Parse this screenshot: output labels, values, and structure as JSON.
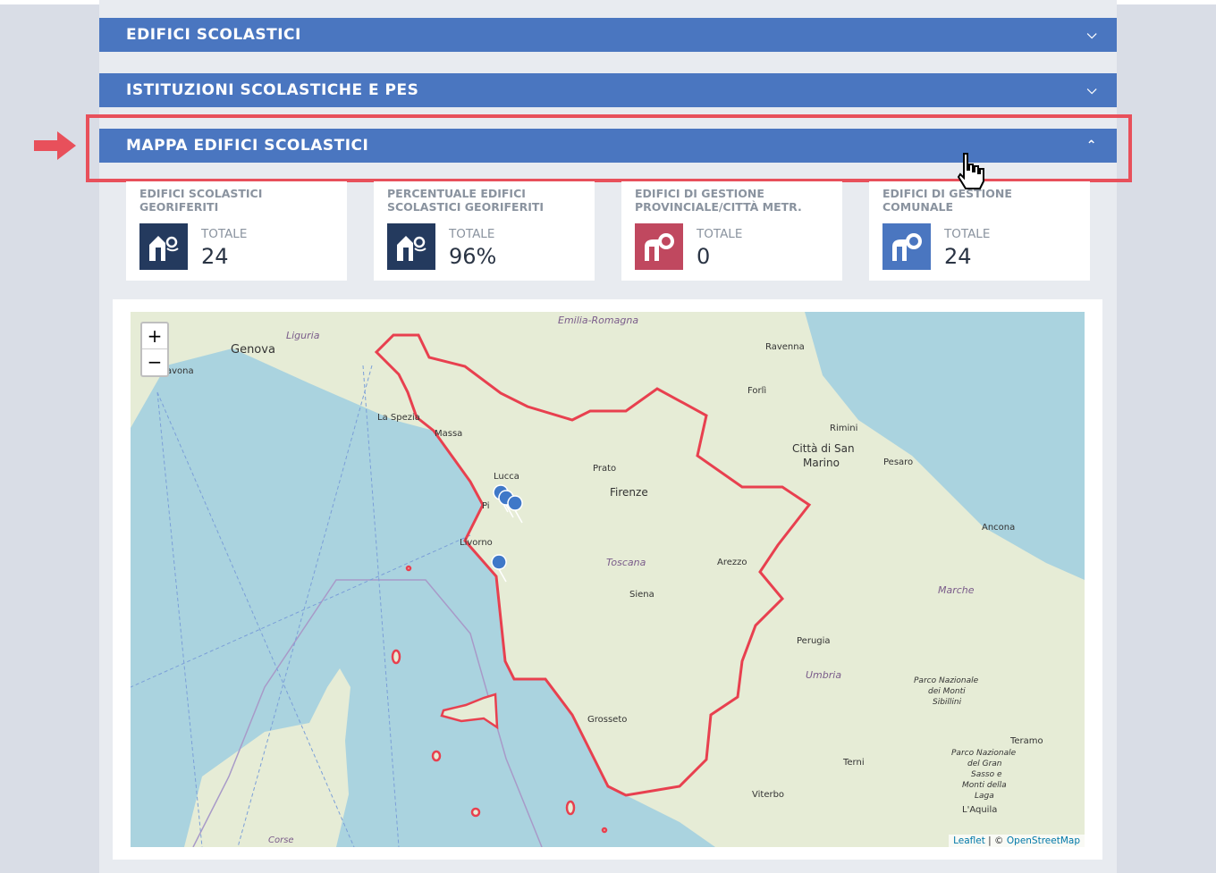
{
  "accordions": [
    {
      "title": "EDIFICI SCOLASTICI",
      "state": "collapsed",
      "chevron": "chevron-down-icon"
    },
    {
      "title": "ISTITUZIONI SCOLASTICHE E PES",
      "state": "collapsed",
      "chevron": "chevron-down-icon"
    },
    {
      "title": "MAPPA EDIFICI SCOLASTICI",
      "state": "expanded",
      "chevron": "chevron-up-icon"
    }
  ],
  "cards": [
    {
      "title": "EDIFICI SCOLASTICI GEORIFERITI",
      "label": "TOTALE",
      "value": "24",
      "icon": "building-pin-icon",
      "color": "#243a5e"
    },
    {
      "title": "PERCENTUALE EDIFICI SCOLASTICI GEORIFERITI",
      "label": "TOTALE",
      "value": "96%",
      "icon": "building-pin-icon",
      "color": "#243a5e"
    },
    {
      "title": "EDIFICI DI GESTIONE PROVINCIALE/CITTÀ METR.",
      "label": "TOTALE",
      "value": "0",
      "icon": "building-gear-p-icon",
      "color": "#c0485f"
    },
    {
      "title": "EDIFICI DI GESTIONE COMUNALE",
      "label": "TOTALE",
      "value": "24",
      "icon": "building-gear-c-icon",
      "color": "#4a76c0"
    }
  ],
  "map": {
    "zoom_in": "+",
    "zoom_out": "−",
    "labels": [
      "Genova",
      "avona",
      "Liguria",
      "Emilia-Romagna",
      "Ravenna",
      "Forlì",
      "Rimini",
      "Città di San",
      "Marino",
      "Pesaro",
      "La Spezia",
      "Massa",
      "Lucca",
      "Prato",
      "Firenze",
      "Pi",
      "Livorno",
      "Ancona",
      "Toscana",
      "Arezzo",
      "Siena",
      "Marche",
      "Perugia",
      "Umbria",
      "Parco Nazionale",
      "dei Monti",
      "Sibillini",
      "Grosseto",
      "Teramo",
      "Terni",
      "Parco Nazionale",
      "del Gran",
      "Sasso e",
      "Monti della",
      "Laga",
      "Viterbo",
      "L'Aquila",
      "Corse"
    ],
    "attribution_leaflet": "Leaflet",
    "attribution_sep": " | © ",
    "attribution_osm": "OpenStreetMap",
    "region_color": "#e8404f",
    "marker_color": "#3f78c8",
    "sea_color": "#aad3df"
  },
  "colors": {
    "header": "#4a76c0",
    "highlight": "#e8505b"
  }
}
